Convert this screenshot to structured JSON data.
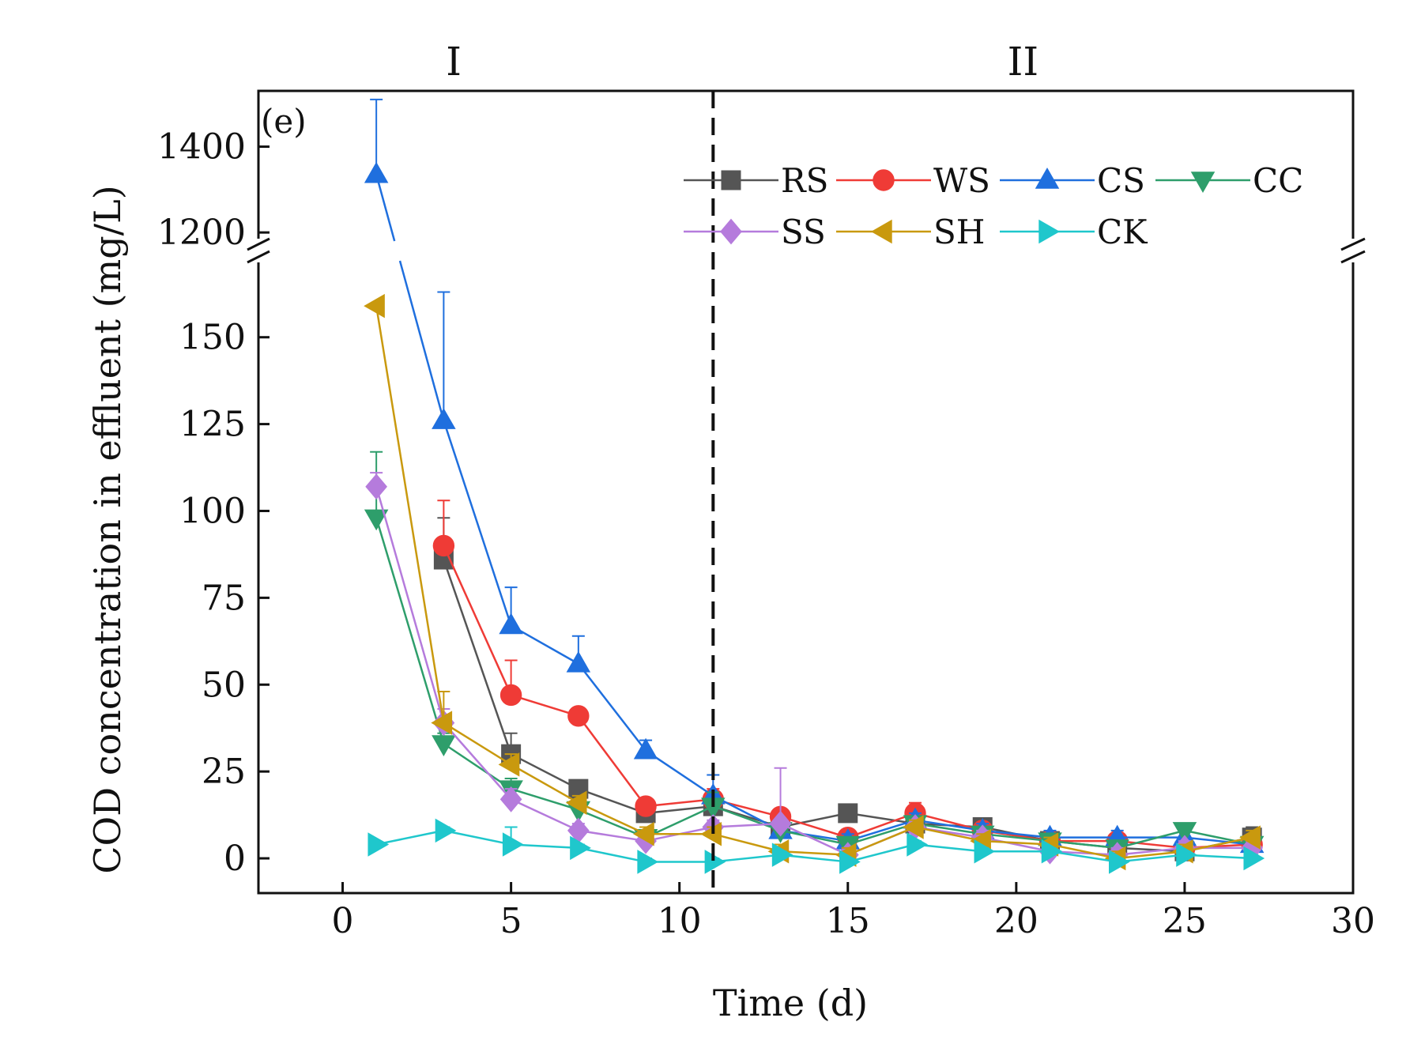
{
  "chart_data": {
    "type": "line",
    "panel_label": "(e)",
    "xlabel": "Time (d)",
    "ylabel": "COD concentration in effluent (mg/L)",
    "xlim": [
      -2.5,
      30
    ],
    "x_ticks": [
      0,
      5,
      10,
      15,
      20,
      25,
      30
    ],
    "y_ticks_lower": [
      0,
      25,
      50,
      75,
      100,
      125,
      150
    ],
    "y_ticks_upper": [
      1200,
      1400
    ],
    "ylim_lower": [
      -10,
      172
    ],
    "ylim_upper": [
      1180,
      1530
    ],
    "axis_break": "between 172 and 1180",
    "phase_divider_x": 11,
    "phases": [
      {
        "label": "I",
        "x_center": 3.3
      },
      {
        "label": "II",
        "x_center": 20.2
      }
    ],
    "legend_position": "top-right",
    "x": [
      1,
      3,
      5,
      7,
      9,
      11,
      13,
      15,
      17,
      19,
      21,
      23,
      25,
      27
    ],
    "series": [
      {
        "name": "RS",
        "color": "#555555",
        "marker": "square",
        "values": [
          null,
          86,
          30,
          20,
          13,
          15,
          9,
          13,
          10,
          9,
          5,
          3,
          2,
          6
        ],
        "errors": [
          null,
          12,
          6,
          2,
          2,
          3,
          2,
          2,
          3,
          2,
          2,
          2,
          2,
          3
        ]
      },
      {
        "name": "WS",
        "color": "#ef3b36",
        "marker": "circle",
        "values": [
          null,
          90,
          47,
          41,
          15,
          17,
          12,
          6,
          13,
          8,
          5,
          5,
          3,
          4
        ],
        "errors": [
          null,
          13,
          10,
          2,
          2,
          3,
          2,
          2,
          3,
          2,
          2,
          2,
          2,
          2
        ]
      },
      {
        "name": "CS",
        "color": "#1f6fde",
        "marker": "triangle-up",
        "values": [
          1335,
          126,
          67,
          56,
          31,
          18,
          8,
          5,
          11,
          8,
          6,
          6,
          6,
          4
        ],
        "errors": [
          175,
          37,
          11,
          8,
          3,
          6,
          2,
          2,
          2,
          2,
          2,
          2,
          2,
          2
        ]
      },
      {
        "name": "CC",
        "color": "#2e9e6b",
        "marker": "triangle-down",
        "values": [
          98,
          33,
          20,
          14,
          6,
          15,
          8,
          4,
          10,
          7,
          5,
          3,
          8,
          4
        ],
        "errors": [
          19,
          3,
          3,
          2,
          2,
          4,
          2,
          2,
          2,
          2,
          2,
          2,
          2,
          2
        ]
      },
      {
        "name": "SS",
        "color": "#b57bdc",
        "marker": "diamond",
        "values": [
          107,
          39,
          17,
          8,
          5,
          9,
          10,
          1,
          9,
          6,
          2,
          1,
          3,
          3
        ],
        "errors": [
          4,
          4,
          3,
          2,
          2,
          2,
          16,
          2,
          2,
          2,
          2,
          2,
          2,
          2
        ]
      },
      {
        "name": "SH",
        "color": "#c9990e",
        "marker": "triangle-left",
        "values": [
          159,
          39,
          27,
          16,
          7,
          7,
          2,
          1,
          9,
          5,
          4,
          0,
          2,
          6
        ],
        "errors": [
          0,
          9,
          3,
          2,
          2,
          2,
          2,
          2,
          2,
          2,
          2,
          2,
          2,
          2
        ]
      },
      {
        "name": "CK",
        "color": "#1fc7cc",
        "marker": "triangle-right",
        "values": [
          4,
          8,
          4,
          3,
          -1,
          -1,
          1,
          -1,
          4,
          2,
          2,
          -1,
          1,
          0
        ],
        "errors": [
          0,
          1,
          5,
          1,
          1,
          1,
          1,
          1,
          1,
          1,
          1,
          1,
          1,
          1
        ]
      }
    ]
  }
}
